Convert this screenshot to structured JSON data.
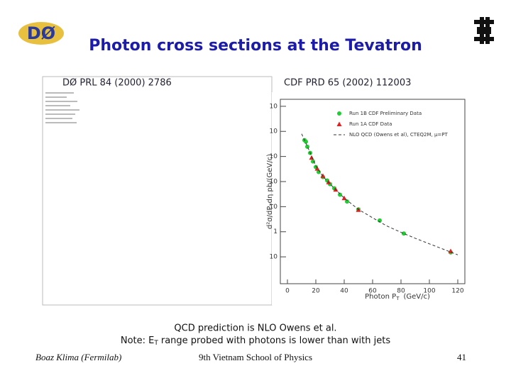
{
  "header": {
    "title": "Photon cross sections at the Tevatron",
    "logo": "DØ"
  },
  "bullets": [
    "DØ PRL 84 (2000) 2786",
    "CDF PRD 65 (2002) 112003"
  ],
  "chart_data": {
    "type": "scatter",
    "log_y": true,
    "legend": "upper right",
    "xlabel": [
      "Photon P",
      "T",
      "(GeV/c)"
    ],
    "ylabel": [
      "d²σ/dP",
      "T",
      "dη    pb/(GeV/c)"
    ],
    "xlim": [
      -5,
      125
    ],
    "xticks": [
      0,
      20,
      40,
      60,
      80,
      100,
      120
    ],
    "ylim": [
      0.0085,
      190000
    ],
    "yticks": [
      {
        "value": 100000,
        "label": "10"
      },
      {
        "value": 10000,
        "label": "10"
      },
      {
        "value": 1000,
        "label": "10"
      },
      {
        "value": 100,
        "label": "10"
      },
      {
        "value": 10,
        "label": "10"
      },
      1,
      {
        "value": 0.1,
        "label": "10"
      }
    ],
    "series": [
      {
        "name": "Run 1B CDF Preliminary Data",
        "color": "#22cc33",
        "marker": "circle",
        "x": [
          12,
          13,
          14,
          16,
          18,
          20,
          22,
          25,
          28,
          30,
          33,
          37,
          42,
          50,
          65,
          82,
          115
        ],
        "values": [
          4470,
          3890,
          2450,
          1380,
          631,
          380,
          240,
          151,
          110,
          79,
          54,
          30,
          16,
          7.8,
          2.8,
          0.85,
          0.15
        ]
      },
      {
        "name": "Run 1A CDF Data",
        "color": "#dd2222",
        "marker": "triangle",
        "x": [
          17,
          21,
          25,
          29,
          34,
          40,
          50,
          115
        ],
        "values": [
          900,
          330,
          170,
          95,
          48,
          22,
          7.5,
          0.17
        ]
      },
      {
        "name": "NLO QCD (Owens et al), CTEQ2M, μ=PT",
        "color": "#333333",
        "marker": "dashed",
        "x": [
          10,
          15,
          20,
          25,
          30,
          40,
          50,
          60,
          70,
          80,
          90,
          100,
          110,
          120
        ],
        "values": [
          8000,
          1900,
          420,
          160,
          80,
          22,
          7.8,
          3.6,
          1.7,
          0.95,
          0.55,
          0.33,
          0.2,
          0.12
        ]
      }
    ]
  },
  "caption": {
    "line1": "QCD prediction is NLO Owens et al.",
    "line2": [
      "Note: E",
      "T",
      "range probed with photons is lower than with jets"
    ]
  },
  "footer": {
    "left": "Boaz Klima (Fermilab)",
    "center": "9th Vietnam School of Physics",
    "right": "41"
  }
}
